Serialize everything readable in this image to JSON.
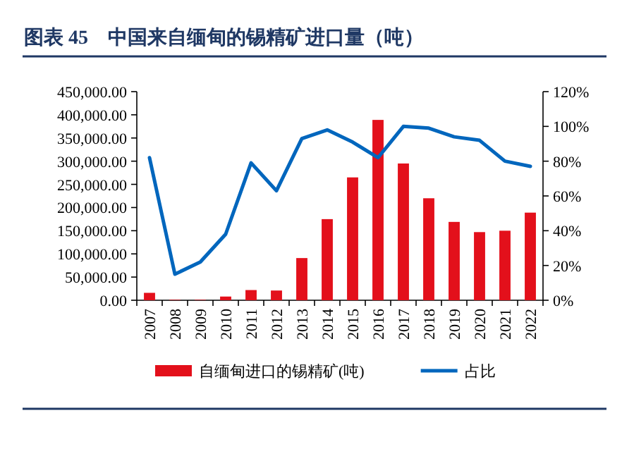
{
  "chart_data": {
    "type": "bar",
    "title": "图表 45　中国来自缅甸的锡精矿进口量（吨）",
    "categories": [
      "2007",
      "2008",
      "2009",
      "2010",
      "2011",
      "2012",
      "2013",
      "2014",
      "2015",
      "2016",
      "2017",
      "2018",
      "2019",
      "2020",
      "2021",
      "2022"
    ],
    "series": [
      {
        "name": "自缅甸进口的锡精矿(吨)",
        "color": "#e3101b",
        "values": [
          16000,
          1000,
          1000,
          8000,
          22000,
          21000,
          91000,
          175000,
          265000,
          389000,
          295000,
          220000,
          169000,
          147000,
          150000,
          189000
        ]
      },
      {
        "name": "占比",
        "type": "line",
        "axis": "y2",
        "color": "#0066bd",
        "values": [
          82,
          15,
          22,
          38,
          79,
          63,
          93,
          98,
          91,
          82,
          100,
          99,
          94,
          92,
          80,
          77
        ]
      }
    ],
    "ylim": [
      0,
      450000
    ],
    "yticks": [
      {
        "value": 0,
        "label": "0.00"
      },
      {
        "value": 50000,
        "label": "50,000.00"
      },
      {
        "value": 100000,
        "label": "100,000.00"
      },
      {
        "value": 150000,
        "label": "150,000.00"
      },
      {
        "value": 200000,
        "label": "200,000.00"
      },
      {
        "value": 250000,
        "label": "250,000.00"
      },
      {
        "value": 300000,
        "label": "300,000.00"
      },
      {
        "value": 350000,
        "label": "350,000.00"
      },
      {
        "value": 400000,
        "label": "400,000.00"
      },
      {
        "value": 450000,
        "label": "450,000.00"
      }
    ],
    "y2lim": [
      0,
      120
    ],
    "y2ticks": [
      {
        "value": 0,
        "label": "0%"
      },
      {
        "value": 20,
        "label": "20%"
      },
      {
        "value": 40,
        "label": "40%"
      },
      {
        "value": 60,
        "label": "60%"
      },
      {
        "value": 80,
        "label": "80%"
      },
      {
        "value": 100,
        "label": "100%"
      },
      {
        "value": 120,
        "label": "120%"
      }
    ],
    "legend": "bottom"
  }
}
